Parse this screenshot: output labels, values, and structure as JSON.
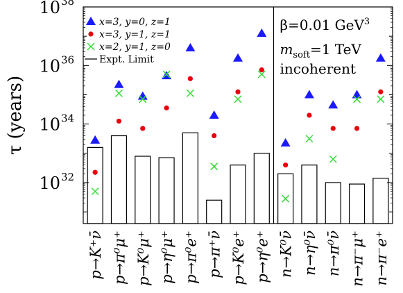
{
  "chart_data": {
    "type": "bar+scatter",
    "ylabel": "τ (years)",
    "yscale": "log",
    "ylim_log10": [
      30.6,
      38
    ],
    "y_ticks": [
      {
        "exp": "32",
        "value": 32
      },
      {
        "exp": "34",
        "value": 34
      },
      {
        "exp": "36",
        "value": 36
      },
      {
        "exp": "38",
        "value": 38
      }
    ],
    "y_tick_base": "10",
    "categories": [
      {
        "id": "p_K+_nubar",
        "label": "p→K⁺ν̄"
      },
      {
        "id": "p_pi+_mu0",
        "label": "p→π⁰μ⁺"
      },
      {
        "id": "p_K0_mu+",
        "label": "p→K⁰μ⁺"
      },
      {
        "id": "p_eta0_mu+",
        "label": "p→η⁰μ⁺"
      },
      {
        "id": "p_pi0_e+",
        "label": "p→π⁰e⁺"
      },
      {
        "id": "p_pi+_nubar",
        "label": "p→π⁺ν̄"
      },
      {
        "id": "p_K0_e+",
        "label": "p→K⁰e⁺"
      },
      {
        "id": "p_eta0_e+",
        "label": "p→η⁰e⁺"
      },
      {
        "id": "n_K0_nubar",
        "label": "n→K⁰ν̄"
      },
      {
        "id": "n_eta0_nubar",
        "label": "n→η⁰ν̄"
      },
      {
        "id": "n_pi0_nubar",
        "label": "n→π⁰ν̄"
      },
      {
        "id": "n_pi-_mu+",
        "label": "n→π⁻μ⁺"
      },
      {
        "id": "n_pi-_e+",
        "label": "n→π⁻e⁺"
      }
    ],
    "expt_limit_log10": [
      33.2,
      33.6,
      32.9,
      32.85,
      33.7,
      31.4,
      32.6,
      33.0,
      32.3,
      32.6,
      32.0,
      31.95,
      32.15
    ],
    "series": [
      {
        "name": "x=3, y=0, z=1",
        "marker": "triangle",
        "color": "#1a1aff",
        "values_log10": [
          33.45,
          35.35,
          34.95,
          35.65,
          36.6,
          34.3,
          36.25,
          37.1,
          33.35,
          35.0,
          34.65,
          35.0,
          36.25
        ]
      },
      {
        "name": "x=3, y=1, z=1",
        "marker": "dot",
        "color": "#e8000b",
        "values_log10": [
          32.35,
          34.1,
          33.85,
          34.55,
          35.55,
          33.6,
          35.1,
          35.85,
          32.6,
          34.3,
          33.85,
          33.85,
          35.1
        ]
      },
      {
        "name": "x=2, y=1, z=0",
        "marker": "cross",
        "color": "#33dd33",
        "values_log10": [
          31.7,
          35.05,
          34.85,
          35.7,
          35.05,
          32.55,
          34.85,
          35.7,
          31.45,
          33.5,
          32.8,
          34.85,
          34.85
        ]
      }
    ],
    "legend_limit_label": "Expt. Limit",
    "annotations": [
      {
        "text": "β=0.01 GeV",
        "sup": "3"
      },
      {
        "text": "m",
        "sub": "soft",
        "suffix": "=1 TeV"
      },
      {
        "text": "incoherent"
      }
    ],
    "divider_after_index": 7
  }
}
